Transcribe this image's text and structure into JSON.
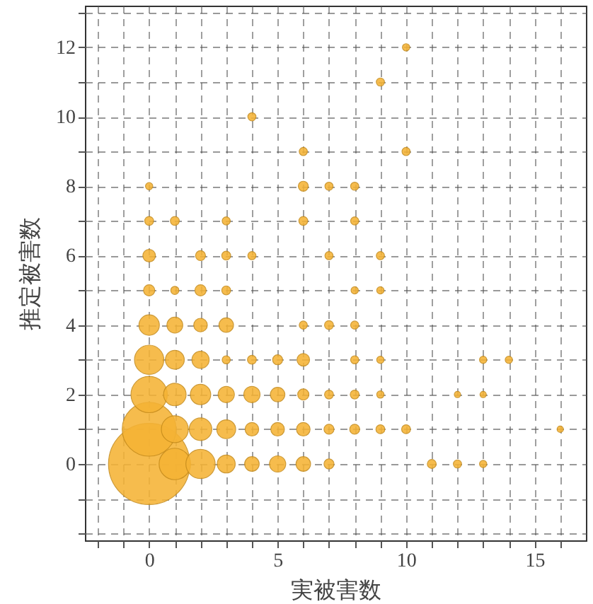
{
  "chart_data": {
    "type": "bubble",
    "xlabel": "実被害数",
    "ylabel": "推定被害数",
    "color": "#f5b335",
    "grid": true,
    "x": [
      0,
      1,
      2,
      3,
      4,
      5,
      6,
      7,
      11,
      12,
      13,
      0,
      1,
      2,
      3,
      4,
      5,
      6,
      7,
      8,
      9,
      10,
      16,
      0,
      1,
      2,
      3,
      4,
      5,
      6,
      7,
      8,
      9,
      12,
      13,
      0,
      1,
      2,
      3,
      4,
      5,
      6,
      8,
      9,
      13,
      14,
      0,
      1,
      2,
      3,
      6,
      7,
      8,
      0,
      1,
      2,
      3,
      8,
      9,
      0,
      2,
      3,
      4,
      7,
      9,
      0,
      1,
      3,
      6,
      8,
      0,
      6,
      7,
      8,
      6,
      10,
      4,
      9,
      10
    ],
    "values": [
      0,
      0,
      0,
      0,
      0,
      0,
      0,
      0,
      0,
      0,
      0,
      1,
      1,
      1,
      1,
      1,
      1,
      1,
      1,
      1,
      1,
      1,
      1,
      2,
      2,
      2,
      2,
      2,
      2,
      2,
      2,
      2,
      2,
      2,
      2,
      3,
      3,
      3,
      3,
      3,
      3,
      3,
      3,
      3,
      3,
      3,
      4,
      4,
      4,
      4,
      4,
      4,
      4,
      5,
      5,
      5,
      5,
      5,
      5,
      6,
      6,
      6,
      6,
      6,
      6,
      7,
      7,
      7,
      7,
      7,
      8,
      8,
      8,
      8,
      9,
      9,
      10,
      11,
      12
    ],
    "sizes": [
      1,
      0.15,
      0.13,
      0.049,
      0.032,
      0.04,
      0.032,
      0.015,
      0.012,
      0.01,
      0.008,
      0.44,
      0.11,
      0.077,
      0.054,
      0.028,
      0.028,
      0.028,
      0.015,
      0.015,
      0.012,
      0.012,
      0.006,
      0.2,
      0.077,
      0.063,
      0.04,
      0.04,
      0.032,
      0.019,
      0.012,
      0.012,
      0.008,
      0.006,
      0.006,
      0.13,
      0.054,
      0.045,
      0.01,
      0.012,
      0.015,
      0.024,
      0.01,
      0.008,
      0.008,
      0.008,
      0.063,
      0.038,
      0.028,
      0.032,
      0.01,
      0.012,
      0.01,
      0.019,
      0.01,
      0.019,
      0.012,
      0.008,
      0.008,
      0.024,
      0.015,
      0.012,
      0.01,
      0.01,
      0.01,
      0.012,
      0.012,
      0.01,
      0.012,
      0.01,
      0.008,
      0.015,
      0.01,
      0.01,
      0.01,
      0.01,
      0.01,
      0.01,
      0.008
    ],
    "xlim": [
      -2.5,
      17
    ],
    "xticks": [
      {
        "value": -2,
        "label": null
      },
      {
        "value": -1,
        "label": null
      },
      0,
      {
        "value": 1,
        "label": null
      },
      {
        "value": 2,
        "label": null
      },
      {
        "value": 3,
        "label": null
      },
      {
        "value": 4,
        "label": null
      },
      5,
      {
        "value": 6,
        "label": null
      },
      {
        "value": 7,
        "label": null
      },
      {
        "value": 8,
        "label": null
      },
      {
        "value": 9,
        "label": null
      },
      10,
      {
        "value": 11,
        "label": null
      },
      {
        "value": 12,
        "label": null
      },
      {
        "value": 13,
        "label": null
      },
      {
        "value": 14,
        "label": null
      },
      15,
      {
        "value": 16,
        "label": null
      }
    ],
    "ylim": [
      -2.2,
      13.2
    ],
    "yticks": [
      {
        "value": -2,
        "label": null
      },
      {
        "value": -1,
        "label": null
      },
      0,
      {
        "value": 1,
        "label": null
      },
      2,
      {
        "value": 3,
        "label": null
      },
      4,
      {
        "value": 5,
        "label": null
      },
      6,
      {
        "value": 7,
        "label": null
      },
      8,
      {
        "value": 9,
        "label": null
      },
      10,
      {
        "value": 11,
        "label": null
      },
      12,
      {
        "value": 13,
        "label": null
      }
    ]
  }
}
